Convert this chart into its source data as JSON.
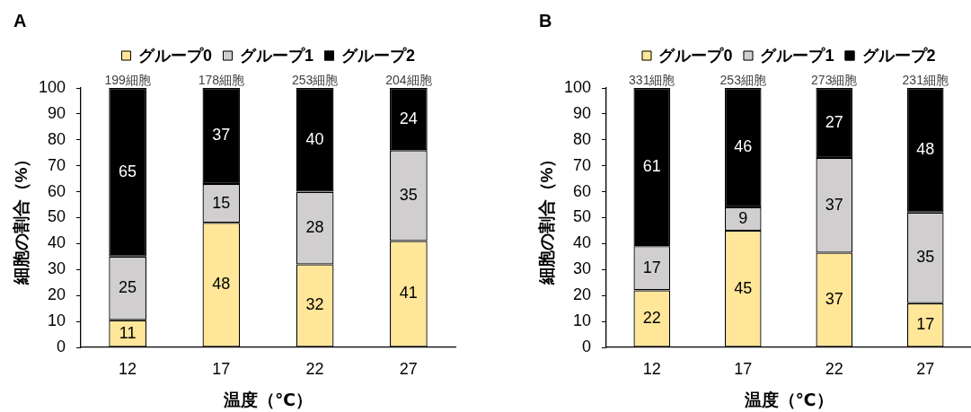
{
  "chart_data": [
    {
      "type": "bar",
      "title": "A",
      "categories": [
        "12",
        "17",
        "22",
        "27"
      ],
      "stacked": true,
      "legend": "top",
      "grid": false,
      "xlabel": "温度（℃）",
      "ylabel": "細胞の割合（%）",
      "ylim": [
        0,
        100
      ],
      "yticks": [
        0,
        10,
        20,
        30,
        40,
        50,
        60,
        70,
        80,
        90,
        100
      ],
      "series": [
        {
          "name": "グループ0",
          "color": "#ffe699",
          "values": [
            10.5,
            48,
            32,
            41
          ],
          "value_labels": [
            "11",
            "48",
            "32",
            "41"
          ]
        },
        {
          "name": "グループ1",
          "color": "#d0cece",
          "values": [
            24.5,
            15,
            28,
            35
          ],
          "value_labels": [
            "25",
            "15",
            "28",
            "35"
          ]
        },
        {
          "name": "グループ2",
          "color": "#000000",
          "values": [
            65,
            37,
            40,
            24
          ],
          "value_labels": [
            "65",
            "37",
            "40",
            "24"
          ]
        }
      ],
      "annotations": [
        {
          "text": "199細胞",
          "x": "12",
          "y": 100
        },
        {
          "text": "178細胞",
          "x": "17",
          "y": 100
        },
        {
          "text": "253細胞",
          "x": "22",
          "y": 100
        },
        {
          "text": "204細胞",
          "x": "27",
          "y": 100
        }
      ]
    },
    {
      "type": "bar",
      "title": "B",
      "categories": [
        "12",
        "17",
        "22",
        "27"
      ],
      "stacked": true,
      "legend": "top",
      "grid": false,
      "xlabel": "温度（℃）",
      "ylabel": "細胞の割合（%）",
      "ylim": [
        0,
        100
      ],
      "yticks": [
        0,
        10,
        20,
        30,
        40,
        50,
        60,
        70,
        80,
        90,
        100
      ],
      "series": [
        {
          "name": "グループ0",
          "color": "#ffe699",
          "values": [
            22,
            45,
            36.5,
            17
          ],
          "value_labels": [
            "22",
            "45",
            "37",
            "17"
          ]
        },
        {
          "name": "グループ1",
          "color": "#d0cece",
          "values": [
            17,
            9,
            36.5,
            35
          ],
          "value_labels": [
            "17",
            "9",
            "37",
            "35"
          ]
        },
        {
          "name": "グループ2",
          "color": "#000000",
          "values": [
            61,
            46,
            27,
            48
          ],
          "value_labels": [
            "61",
            "46",
            "27",
            "48"
          ]
        }
      ],
      "annotations": [
        {
          "text": "331細胞",
          "x": "12",
          "y": 100
        },
        {
          "text": "253細胞",
          "x": "17",
          "y": 100
        },
        {
          "text": "273細胞",
          "x": "22",
          "y": 100
        },
        {
          "text": "231細胞",
          "x": "27",
          "y": 100
        }
      ]
    }
  ]
}
